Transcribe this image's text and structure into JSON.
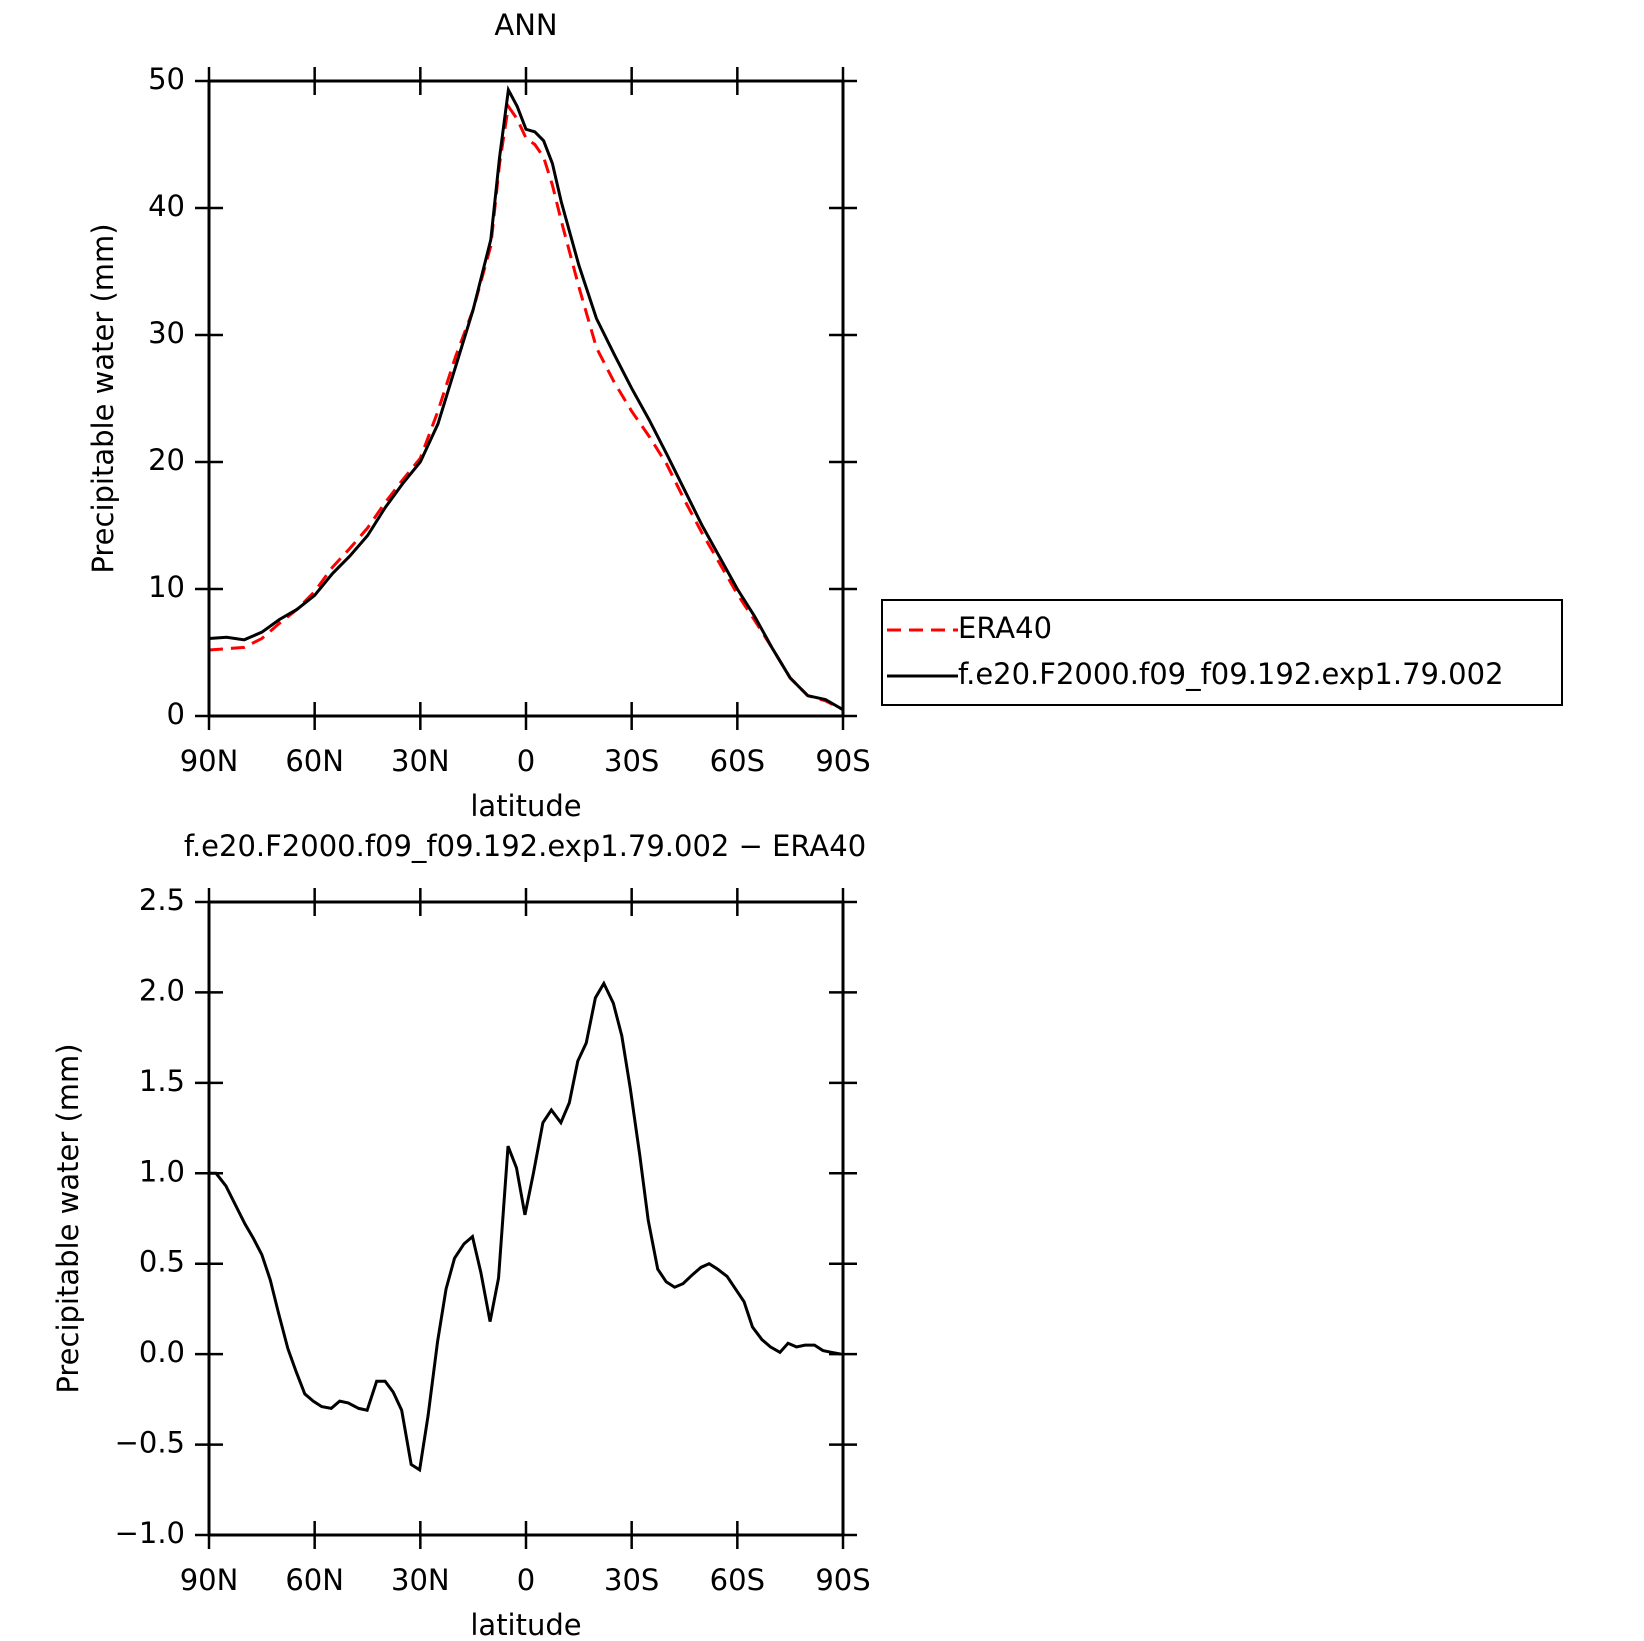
{
  "chart_data": [
    {
      "type": "line",
      "title": "ANN",
      "x_label": "latitude",
      "y_label": "Precipitable water (mm)",
      "x": [
        90,
        85,
        80,
        75,
        70,
        65,
        60,
        55,
        50,
        45,
        40,
        35,
        30,
        25,
        20,
        15,
        10,
        7.5,
        5,
        2.5,
        0,
        -2.5,
        -5,
        -7.5,
        -10,
        -15,
        -20,
        -25,
        -30,
        -35,
        -40,
        -45,
        -50,
        -55,
        -60,
        -65,
        -70,
        -75,
        -80,
        -85,
        -90
      ],
      "series": [
        {
          "name": "ERA40",
          "color": "#ff0000",
          "linestyle": "dashed",
          "values": [
            5.2,
            5.3,
            5.4,
            6.1,
            7.3,
            8.4,
            9.8,
            11.7,
            13.2,
            14.8,
            16.8,
            18.6,
            20.3,
            24.0,
            28.3,
            32.0,
            37.0,
            43.5,
            48.0,
            47.0,
            45.5,
            45.0,
            44.0,
            41.8,
            39.0,
            33.8,
            29.0,
            26.3,
            24.0,
            22.0,
            19.8,
            17.0,
            14.4,
            12.0,
            9.6,
            7.5,
            5.3,
            3.0,
            1.6,
            1.2,
            0.5
          ]
        },
        {
          "name": "f.e20.F2000.f09_f09.192.exp1.79.002",
          "color": "#000000",
          "linestyle": "solid",
          "values": [
            6.1,
            6.2,
            6.0,
            6.6,
            7.6,
            8.4,
            9.5,
            11.2,
            12.6,
            14.2,
            16.4,
            18.3,
            20.0,
            23.0,
            27.5,
            32.0,
            37.5,
            44.0,
            49.3,
            48.0,
            46.2,
            46.0,
            45.3,
            43.5,
            40.5,
            35.5,
            31.3,
            28.5,
            25.8,
            23.3,
            20.6,
            17.8,
            15.0,
            12.5,
            10.0,
            7.8,
            5.3,
            3.0,
            1.6,
            1.3,
            0.5
          ]
        }
      ],
      "xlim": [
        90,
        -90
      ],
      "ylim": [
        0,
        50
      ],
      "xticks": [
        {
          "value": 90,
          "label": "90N"
        },
        {
          "value": 60,
          "label": "60N"
        },
        {
          "value": 30,
          "label": "30N"
        },
        0,
        {
          "value": -30,
          "label": "30S"
        },
        {
          "value": -60,
          "label": "60S"
        },
        {
          "value": -90,
          "label": "90S"
        }
      ],
      "yticks": [
        0,
        10,
        20,
        30,
        40,
        50
      ],
      "legend": "right"
    },
    {
      "type": "line",
      "title": "f.e20.F2000.f09_f09.192.exp1.79.002 − ERA40",
      "x_label": "latitude",
      "y_label": "Precipitable water (mm)",
      "x": [
        90,
        88,
        85.2,
        79.8,
        77.4,
        75,
        72.6,
        70.3,
        67.6,
        65.2,
        62.8,
        60.4,
        58,
        55.3,
        52.9,
        50.5,
        47.5,
        45.1,
        42.4,
        40,
        37.7,
        35.3,
        32.6,
        30.2,
        27.8,
        25.1,
        22.7,
        20.3,
        17.6,
        15.2,
        12.8,
        10.2,
        7.8,
        5.1,
        2.7,
        0.3,
        -2.1,
        -4.8,
        -7.2,
        -9.9,
        -12.3,
        -14.7,
        -17.1,
        -19.7,
        -22.1,
        -24.8,
        -27.2,
        -29.6,
        -32.3,
        -34.7,
        -37.4,
        -39.8,
        -42.2,
        -44.6,
        -47.3,
        -49.7,
        -52,
        -54.4,
        -57.1,
        -59.5,
        -61.9,
        -64.3,
        -67,
        -69.4,
        -72.1,
        -74.4,
        -76.8,
        -79.2,
        -81.9,
        -84.3,
        -86.7,
        -89.4
      ],
      "series": [
        {
          "color": "#000000",
          "linestyle": "solid",
          "values": [
            1.0,
            1.0,
            0.93,
            0.72,
            0.64,
            0.55,
            0.41,
            0.23,
            0.03,
            -0.1,
            -0.22,
            -0.26,
            -0.29,
            -0.3,
            -0.26,
            -0.27,
            -0.3,
            -0.31,
            -0.15,
            -0.15,
            -0.21,
            -0.31,
            -0.61,
            -0.64,
            -0.34,
            0.07,
            0.36,
            0.53,
            0.61,
            0.65,
            0.45,
            0.18,
            0.42,
            1.15,
            1.03,
            0.77,
            1.0,
            1.28,
            1.35,
            1.28,
            1.39,
            1.62,
            1.72,
            1.97,
            2.05,
            1.94,
            1.76,
            1.47,
            1.1,
            0.74,
            0.47,
            0.4,
            0.37,
            0.39,
            0.44,
            0.48,
            0.5,
            0.47,
            0.43,
            0.36,
            0.29,
            0.15,
            0.08,
            0.04,
            0.01,
            0.06,
            0.04,
            0.05,
            0.05,
            0.02,
            0.01,
            0.0
          ]
        }
      ],
      "xlim": [
        90,
        -90
      ],
      "ylim": [
        -1.0,
        2.5
      ],
      "xticks": [
        {
          "value": 90,
          "label": "90N"
        },
        {
          "value": 60,
          "label": "60N"
        },
        {
          "value": 30,
          "label": "30N"
        },
        0,
        {
          "value": -30,
          "label": "30S"
        },
        {
          "value": -60,
          "label": "60S"
        },
        {
          "value": -90,
          "label": "90S"
        }
      ],
      "yticks": [
        {
          "value": -1.0,
          "label": "−1.0"
        },
        {
          "value": -0.5,
          "label": "−0.5"
        },
        {
          "value": 0.0,
          "label": "0.0"
        },
        0.5,
        {
          "value": 1.0,
          "label": "1.0"
        },
        1.5,
        {
          "value": 2.0,
          "label": "2.0"
        },
        2.5
      ]
    }
  ]
}
